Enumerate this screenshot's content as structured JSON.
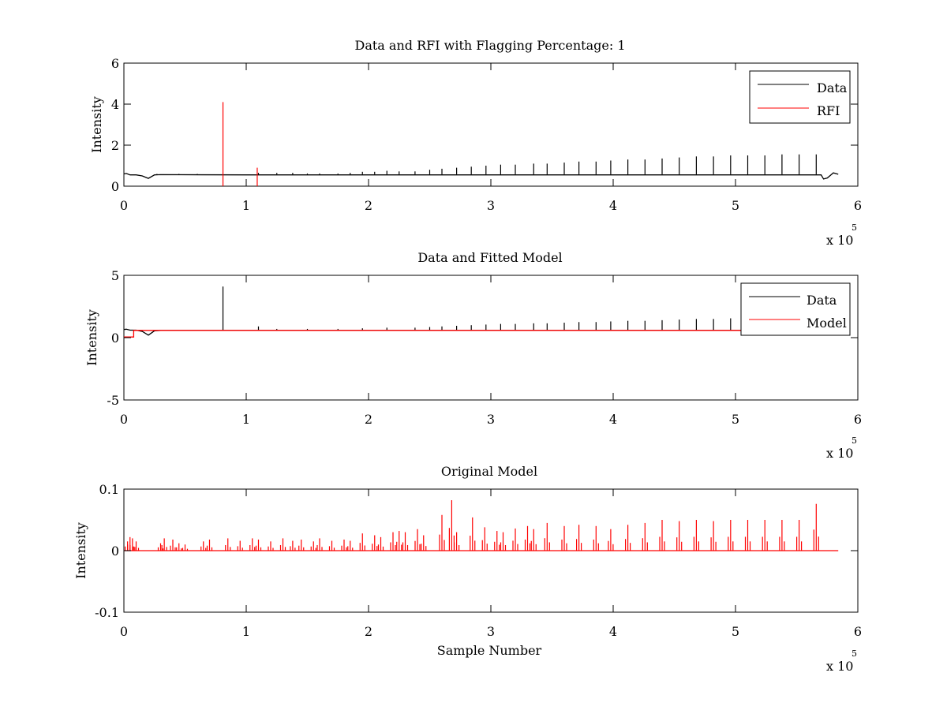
{
  "chart_data": [
    {
      "type": "line",
      "title": "Data and RFI with Flagging Percentage: 1",
      "xlabel": "",
      "ylabel": "Intensity",
      "x_exponent_label": "x 10",
      "x_exponent_power": "5",
      "xlim": [
        0,
        6
      ],
      "ylim": [
        0,
        6
      ],
      "xticks": [
        "0",
        "1",
        "2",
        "3",
        "4",
        "5",
        "6"
      ],
      "yticks": [
        "0",
        "2",
        "4",
        "6"
      ],
      "ytick_values": [
        0,
        2,
        4,
        6
      ],
      "legend": {
        "position": "top-right",
        "entries": [
          "Data",
          "RFI"
        ]
      },
      "series": [
        {
          "name": "Data",
          "color": "#000000",
          "baseline": [
            [
              0,
              0.6
            ],
            [
              0.02,
              0.62
            ],
            [
              0.05,
              0.55
            ],
            [
              0.1,
              0.55
            ],
            [
              0.15,
              0.5
            ],
            [
              0.2,
              0.38
            ],
            [
              0.25,
              0.55
            ],
            [
              0.3,
              0.56
            ],
            [
              1.0,
              0.55
            ],
            [
              2.0,
              0.55
            ],
            [
              3.0,
              0.55
            ],
            [
              4.0,
              0.55
            ],
            [
              5.0,
              0.55
            ],
            [
              5.7,
              0.55
            ],
            [
              5.72,
              0.35
            ],
            [
              5.75,
              0.4
            ],
            [
              5.8,
              0.65
            ],
            [
              5.84,
              0.58
            ]
          ],
          "spikes": [
            [
              0.27,
              0.6
            ],
            [
              0.45,
              0.6
            ],
            [
              0.6,
              0.6
            ],
            [
              1.1,
              0.65
            ],
            [
              1.25,
              0.65
            ],
            [
              1.38,
              0.65
            ],
            [
              1.5,
              0.62
            ],
            [
              1.6,
              0.62
            ],
            [
              1.75,
              0.62
            ],
            [
              1.85,
              0.65
            ],
            [
              1.95,
              0.7
            ],
            [
              2.05,
              0.7
            ],
            [
              2.15,
              0.75
            ],
            [
              2.25,
              0.72
            ],
            [
              2.38,
              0.72
            ],
            [
              2.5,
              0.8
            ],
            [
              2.6,
              0.85
            ],
            [
              2.72,
              0.9
            ],
            [
              2.84,
              0.95
            ],
            [
              2.96,
              1.0
            ],
            [
              3.08,
              1.05
            ],
            [
              3.2,
              1.05
            ],
            [
              3.35,
              1.1
            ],
            [
              3.46,
              1.1
            ],
            [
              3.6,
              1.15
            ],
            [
              3.72,
              1.2
            ],
            [
              3.86,
              1.2
            ],
            [
              3.98,
              1.25
            ],
            [
              4.12,
              1.3
            ],
            [
              4.26,
              1.3
            ],
            [
              4.4,
              1.35
            ],
            [
              4.54,
              1.4
            ],
            [
              4.68,
              1.45
            ],
            [
              4.82,
              1.45
            ],
            [
              4.96,
              1.5
            ],
            [
              5.1,
              1.5
            ],
            [
              5.24,
              1.5
            ],
            [
              5.38,
              1.55
            ],
            [
              5.52,
              1.55
            ],
            [
              5.66,
              1.55
            ]
          ]
        },
        {
          "name": "RFI",
          "color": "#ff0000",
          "spikes": [
            [
              0.81,
              4.1
            ],
            [
              1.09,
              0.9
            ]
          ]
        }
      ]
    },
    {
      "type": "line",
      "title": "Data and Fitted Model",
      "xlabel": "",
      "ylabel": "Intensity",
      "x_exponent_label": "x 10",
      "x_exponent_power": "5",
      "xlim": [
        0,
        6
      ],
      "ylim": [
        -5,
        5
      ],
      "xticks": [
        "0",
        "1",
        "2",
        "3",
        "4",
        "5",
        "6"
      ],
      "yticks": [
        "-5",
        "0",
        "5"
      ],
      "ytick_values": [
        -5,
        0,
        5
      ],
      "legend": {
        "position": "top-right",
        "entries": [
          "Data",
          "Model"
        ]
      },
      "series": [
        {
          "name": "Data",
          "color": "#000000",
          "baseline": [
            [
              0,
              0.65
            ],
            [
              0.02,
              0.68
            ],
            [
              0.05,
              0.6
            ],
            [
              0.1,
              0.6
            ],
            [
              0.15,
              0.5
            ],
            [
              0.2,
              0.2
            ],
            [
              0.25,
              0.55
            ],
            [
              0.3,
              0.58
            ],
            [
              1.0,
              0.58
            ],
            [
              5.84,
              0.58
            ]
          ],
          "spikes": [
            [
              0.81,
              4.1
            ],
            [
              1.1,
              0.9
            ],
            [
              1.25,
              0.7
            ],
            [
              1.5,
              0.7
            ],
            [
              1.75,
              0.7
            ],
            [
              1.95,
              0.75
            ],
            [
              2.15,
              0.8
            ],
            [
              2.38,
              0.8
            ],
            [
              2.5,
              0.85
            ],
            [
              2.6,
              0.9
            ],
            [
              2.72,
              0.95
            ],
            [
              2.84,
              1.0
            ],
            [
              2.96,
              1.05
            ],
            [
              3.08,
              1.1
            ],
            [
              3.2,
              1.1
            ],
            [
              3.35,
              1.15
            ],
            [
              3.46,
              1.15
            ],
            [
              3.6,
              1.2
            ],
            [
              3.72,
              1.25
            ],
            [
              3.86,
              1.25
            ],
            [
              3.98,
              1.3
            ],
            [
              4.12,
              1.35
            ],
            [
              4.26,
              1.35
            ],
            [
              4.4,
              1.4
            ],
            [
              4.54,
              1.45
            ],
            [
              4.68,
              1.5
            ],
            [
              4.82,
              1.5
            ],
            [
              4.96,
              1.55
            ],
            [
              5.1,
              1.55
            ],
            [
              5.24,
              1.55
            ],
            [
              5.38,
              1.6
            ],
            [
              5.52,
              1.6
            ],
            [
              5.66,
              1.6
            ]
          ]
        },
        {
          "name": "Model",
          "color": "#ff0000",
          "baseline": [
            [
              0,
              0.05
            ],
            [
              0.08,
              0.05
            ],
            [
              0.08,
              0.58
            ],
            [
              5.84,
              0.58
            ]
          ],
          "spikes": []
        }
      ]
    },
    {
      "type": "line",
      "title": "Original Model",
      "xlabel": "Sample Number",
      "ylabel": "Intensity",
      "x_exponent_label": "x 10",
      "x_exponent_power": "5",
      "xlim": [
        0,
        6
      ],
      "ylim": [
        -0.1,
        0.1
      ],
      "xticks": [
        "0",
        "1",
        "2",
        "3",
        "4",
        "5",
        "6"
      ],
      "yticks": [
        "-0.1",
        "0",
        "0.1"
      ],
      "ytick_values": [
        -0.1,
        0,
        0.1
      ],
      "legend": null,
      "series": [
        {
          "name": "",
          "color": "#ff0000",
          "baseline": [
            [
              0,
              0
            ],
            [
              5.84,
              0
            ]
          ],
          "spikes": [
            [
              0.03,
              0.015
            ],
            [
              0.05,
              0.022
            ],
            [
              0.07,
              0.02
            ],
            [
              0.1,
              0.015
            ],
            [
              0.3,
              0.012
            ],
            [
              0.33,
              0.02
            ],
            [
              0.4,
              0.018
            ],
            [
              0.45,
              0.012
            ],
            [
              0.5,
              0.01
            ],
            [
              0.65,
              0.015
            ],
            [
              0.7,
              0.018
            ],
            [
              0.85,
              0.02
            ],
            [
              0.95,
              0.016
            ],
            [
              1.05,
              0.02
            ],
            [
              1.1,
              0.018
            ],
            [
              1.2,
              0.015
            ],
            [
              1.3,
              0.02
            ],
            [
              1.38,
              0.016
            ],
            [
              1.45,
              0.018
            ],
            [
              1.55,
              0.015
            ],
            [
              1.6,
              0.02
            ],
            [
              1.7,
              0.016
            ],
            [
              1.8,
              0.018
            ],
            [
              1.85,
              0.016
            ],
            [
              1.95,
              0.028
            ],
            [
              2.05,
              0.025
            ],
            [
              2.1,
              0.022
            ],
            [
              2.2,
              0.03
            ],
            [
              2.25,
              0.032
            ],
            [
              2.3,
              0.03
            ],
            [
              2.4,
              0.035
            ],
            [
              2.45,
              0.025
            ],
            [
              2.6,
              0.058
            ],
            [
              2.68,
              0.082
            ],
            [
              2.72,
              0.03
            ],
            [
              2.85,
              0.054
            ],
            [
              2.95,
              0.038
            ],
            [
              3.05,
              0.032
            ],
            [
              3.1,
              0.03
            ],
            [
              3.2,
              0.036
            ],
            [
              3.3,
              0.04
            ],
            [
              3.35,
              0.035
            ],
            [
              3.46,
              0.045
            ],
            [
              3.6,
              0.04
            ],
            [
              3.72,
              0.042
            ],
            [
              3.86,
              0.04
            ],
            [
              3.98,
              0.035
            ],
            [
              4.12,
              0.042
            ],
            [
              4.26,
              0.045
            ],
            [
              4.4,
              0.05
            ],
            [
              4.54,
              0.048
            ],
            [
              4.68,
              0.05
            ],
            [
              4.82,
              0.048
            ],
            [
              4.96,
              0.05
            ],
            [
              5.1,
              0.05
            ],
            [
              5.24,
              0.05
            ],
            [
              5.38,
              0.05
            ],
            [
              5.52,
              0.05
            ],
            [
              5.66,
              0.076
            ]
          ]
        }
      ]
    }
  ]
}
